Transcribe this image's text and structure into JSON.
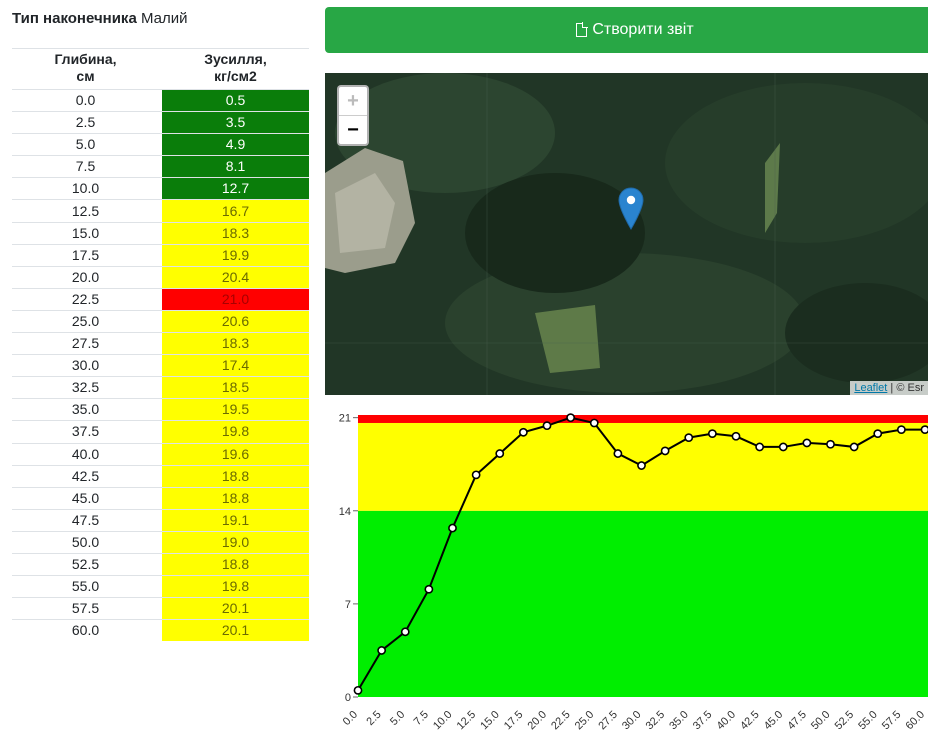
{
  "tip": {
    "label": "Тип наконечника",
    "value": "Малий"
  },
  "table": {
    "headers": {
      "depth": "Глибина,\nсм",
      "force": "Зусилля,\nкг/см2"
    },
    "rows": [
      {
        "depth": "0.0",
        "force": "0.5",
        "level": "green"
      },
      {
        "depth": "2.5",
        "force": "3.5",
        "level": "green"
      },
      {
        "depth": "5.0",
        "force": "4.9",
        "level": "green"
      },
      {
        "depth": "7.5",
        "force": "8.1",
        "level": "green"
      },
      {
        "depth": "10.0",
        "force": "12.7",
        "level": "green"
      },
      {
        "depth": "12.5",
        "force": "16.7",
        "level": "yellow"
      },
      {
        "depth": "15.0",
        "force": "18.3",
        "level": "yellow"
      },
      {
        "depth": "17.5",
        "force": "19.9",
        "level": "yellow"
      },
      {
        "depth": "20.0",
        "force": "20.4",
        "level": "yellow"
      },
      {
        "depth": "22.5",
        "force": "21.0",
        "level": "red"
      },
      {
        "depth": "25.0",
        "force": "20.6",
        "level": "yellow"
      },
      {
        "depth": "27.5",
        "force": "18.3",
        "level": "yellow"
      },
      {
        "depth": "30.0",
        "force": "17.4",
        "level": "yellow"
      },
      {
        "depth": "32.5",
        "force": "18.5",
        "level": "yellow"
      },
      {
        "depth": "35.0",
        "force": "19.5",
        "level": "yellow"
      },
      {
        "depth": "37.5",
        "force": "19.8",
        "level": "yellow"
      },
      {
        "depth": "40.0",
        "force": "19.6",
        "level": "yellow"
      },
      {
        "depth": "42.5",
        "force": "18.8",
        "level": "yellow"
      },
      {
        "depth": "45.0",
        "force": "18.8",
        "level": "yellow"
      },
      {
        "depth": "47.5",
        "force": "19.1",
        "level": "yellow"
      },
      {
        "depth": "50.0",
        "force": "19.0",
        "level": "yellow"
      },
      {
        "depth": "52.5",
        "force": "18.8",
        "level": "yellow"
      },
      {
        "depth": "55.0",
        "force": "19.8",
        "level": "yellow"
      },
      {
        "depth": "57.5",
        "force": "20.1",
        "level": "yellow"
      },
      {
        "depth": "60.0",
        "force": "20.1",
        "level": "yellow"
      }
    ]
  },
  "colors": {
    "green": "#0a7d0a",
    "yellow": "#ffff00",
    "red": "#ff0000",
    "button": "#28a745",
    "chart_green": "#00ee00"
  },
  "report_button": {
    "label": "Створити звіт",
    "icon": "file-icon"
  },
  "map": {
    "zoom_in": "+",
    "zoom_out": "−",
    "attribution_link": "Leaflet",
    "attribution_text": "| © Esr",
    "marker_icon": "map-marker-icon"
  },
  "chart_data": {
    "type": "line",
    "x": [
      "0.0",
      "2.5",
      "5.0",
      "7.5",
      "10.0",
      "12.5",
      "15.0",
      "17.5",
      "20.0",
      "22.5",
      "25.0",
      "27.5",
      "30.0",
      "32.5",
      "35.0",
      "37.5",
      "40.0",
      "42.5",
      "45.0",
      "47.5",
      "50.0",
      "52.5",
      "55.0",
      "57.5",
      "60.0"
    ],
    "series": [
      {
        "values": [
          0.5,
          3.5,
          4.9,
          8.1,
          12.7,
          16.7,
          18.3,
          19.9,
          20.4,
          21.0,
          20.6,
          18.3,
          17.4,
          18.5,
          19.5,
          19.8,
          19.6,
          18.8,
          18.8,
          19.1,
          19.0,
          18.8,
          19.8,
          20.1,
          20.1
        ]
      }
    ],
    "yticks": [
      "0",
      "7",
      "14",
      "21"
    ],
    "ylim": [
      0,
      21.2
    ],
    "bands": [
      {
        "from": 0,
        "to": 14,
        "color": "#00ee00"
      },
      {
        "from": 14,
        "to": 20.6,
        "color": "#ffff00"
      },
      {
        "from": 20.6,
        "to": 21.2,
        "color": "#ff0000"
      }
    ],
    "grid": false,
    "legend": "none"
  }
}
